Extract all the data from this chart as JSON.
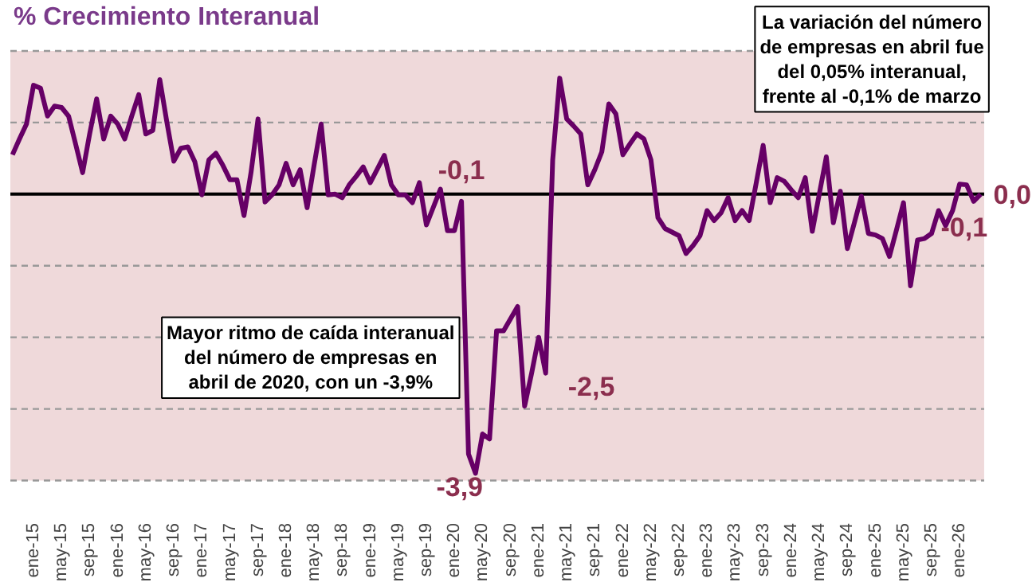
{
  "chart_data": {
    "type": "line",
    "title": "% Crecimiento Interanual",
    "categories": [
      null,
      null,
      null,
      "ene-15",
      null,
      null,
      null,
      "may-15",
      null,
      null,
      null,
      "sep-15",
      null,
      null,
      null,
      "ene-16",
      null,
      null,
      null,
      "may-16",
      null,
      null,
      null,
      "sep-16",
      null,
      null,
      null,
      "ene-17",
      null,
      null,
      null,
      "may-17",
      null,
      null,
      null,
      "sep-17",
      null,
      null,
      null,
      "ene-18",
      null,
      null,
      null,
      "may-18",
      null,
      null,
      null,
      "sep-18",
      null,
      null,
      null,
      "ene-19",
      null,
      null,
      null,
      "may-19",
      null,
      null,
      null,
      "sep-19",
      null,
      null,
      null,
      "ene-20",
      null,
      null,
      null,
      "may-20",
      null,
      null,
      null,
      "sep-20",
      null,
      null,
      null,
      "ene-21",
      null,
      null,
      null,
      "may-21",
      null,
      null,
      null,
      "sep-21",
      null,
      null,
      null,
      "ene-22",
      null,
      null,
      null,
      "may-22",
      null,
      null,
      null,
      "sep-22",
      null,
      null,
      null,
      "ene-23",
      null,
      null,
      null,
      "may-23",
      null,
      null,
      null,
      "sep-23",
      null,
      null,
      null,
      "ene-24",
      null,
      null,
      null,
      "may-24",
      null,
      null,
      null,
      "sep-24",
      null,
      null,
      null,
      "ene-25",
      null,
      null,
      null,
      "may-25",
      null,
      null,
      null,
      "sep-25",
      null,
      null,
      null,
      "ene-26",
      null,
      null,
      null
    ],
    "series": [
      {
        "color": "#660066",
        "values": [
          0.55,
          0.77,
          0.98,
          1.52,
          1.48,
          1.09,
          1.23,
          1.21,
          1.09,
          0.7,
          0.3,
          0.84,
          1.33,
          0.77,
          1.09,
          0.98,
          0.77,
          1.09,
          1.39,
          0.84,
          0.89,
          1.6,
          1.01,
          0.46,
          0.64,
          0.66,
          0.45,
          -0.01,
          0.48,
          0.57,
          0.4,
          0.2,
          0.2,
          -0.3,
          0.3,
          1.05,
          -0.11,
          -0.01,
          0.13,
          0.43,
          0.13,
          0.34,
          -0.19,
          0.41,
          0.98,
          -0.01,
          0.0,
          -0.05,
          0.13,
          0.25,
          0.38,
          0.16,
          0.35,
          0.54,
          0.13,
          -0.01,
          -0.01,
          -0.12,
          0.16,
          -0.43,
          -0.18,
          0.07,
          -0.51,
          -0.51,
          -0.1,
          -3.63,
          -3.9,
          -3.35,
          -3.42,
          -1.91,
          -1.91,
          -1.74,
          -1.57,
          -2.96,
          -2.5,
          -2.0,
          -2.5,
          0.48,
          1.62,
          1.05,
          0.95,
          0.84,
          0.13,
          0.34,
          0.59,
          1.26,
          1.12,
          0.55,
          0.7,
          0.84,
          0.77,
          0.48,
          -0.33,
          -0.48,
          -0.53,
          -0.58,
          -0.83,
          -0.72,
          -0.58,
          -0.23,
          -0.37,
          -0.26,
          -0.05,
          -0.37,
          -0.23,
          -0.37,
          0.15,
          0.68,
          -0.12,
          0.23,
          0.18,
          0.06,
          -0.05,
          0.23,
          -0.52,
          0.0,
          0.52,
          -0.4,
          0.04,
          -0.76,
          -0.4,
          -0.03,
          -0.55,
          -0.57,
          -0.62,
          -0.87,
          -0.5,
          -0.12,
          -1.28,
          -0.64,
          -0.62,
          -0.55,
          -0.23,
          -0.44,
          -0.23,
          0.14,
          0.13,
          -0.1,
          0.0
        ],
        "value_labels": [
          null,
          null,
          null,
          null,
          null,
          null,
          null,
          null,
          null,
          null,
          null,
          null,
          null,
          null,
          null,
          null,
          null,
          null,
          null,
          null,
          null,
          null,
          null,
          null,
          null,
          null,
          null,
          null,
          null,
          null,
          null,
          null,
          null,
          null,
          null,
          null,
          null,
          null,
          null,
          null,
          null,
          null,
          null,
          null,
          null,
          null,
          null,
          null,
          null,
          null,
          null,
          null,
          null,
          null,
          null,
          null,
          null,
          null,
          null,
          null,
          null,
          null,
          null,
          null,
          "-0,1",
          null,
          "-3,9",
          null,
          null,
          null,
          null,
          null,
          null,
          null,
          null,
          null,
          "-2,5",
          null,
          null,
          null,
          null,
          null,
          null,
          null,
          null,
          null,
          null,
          null,
          null,
          null,
          null,
          null,
          null,
          null,
          null,
          null,
          null,
          null,
          null,
          null,
          null,
          null,
          null,
          null,
          null,
          null,
          null,
          null,
          null,
          null,
          null,
          null,
          null,
          null,
          null,
          null,
          null,
          null,
          null,
          null,
          null,
          null,
          null,
          null,
          null,
          null,
          null,
          null,
          null,
          null,
          null,
          null,
          null,
          null,
          null,
          null,
          null,
          "-0,1",
          "0,0"
        ]
      }
    ],
    "ylim": [
      -4,
      2
    ],
    "yticks": [
      {
        "value": -4,
        "label": null
      },
      {
        "value": -3,
        "label": null
      },
      {
        "value": -2,
        "label": null
      },
      {
        "value": -1,
        "label": null
      },
      {
        "value": 0,
        "label": null
      },
      {
        "value": 1,
        "label": null
      },
      {
        "value": 2,
        "label": null
      }
    ],
    "grid": "y",
    "ref_lines": [
      {
        "axis": "y",
        "value": 0,
        "color": "#000000"
      }
    ],
    "annotations": [
      "Mayor ritmo de caída interanual\ndel número de empresas en\nabril de 2020, con un -3,9%",
      "La variación del número\nde empresas en abril fue\ndel 0,05% interanual,\nfrente al -0,1% de marzo"
    ]
  }
}
